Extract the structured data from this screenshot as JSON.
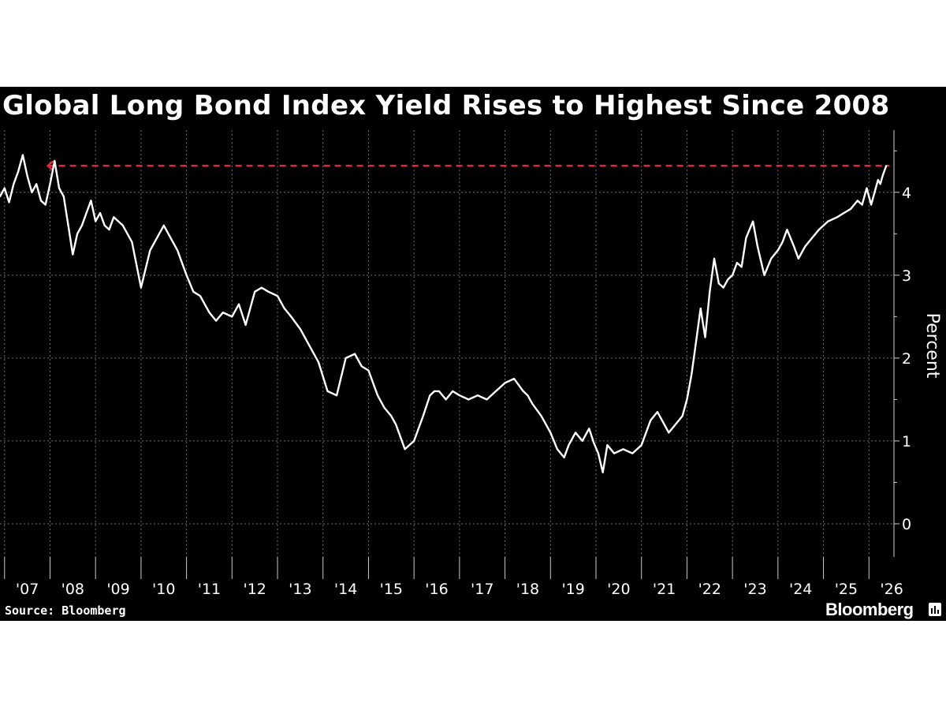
{
  "header": {
    "title": "Global Long Bond Index Yield Rises to Highest Since 2008"
  },
  "footer": {
    "source": "Source: Bloomberg",
    "brand": "Bloomberg",
    "brand_icon": "bar-chart-icon"
  },
  "colors": {
    "background": "#000000",
    "line": "#ffffff",
    "reference": "#e0283c",
    "grid": "#6e6e6e"
  },
  "chart_data": {
    "type": "line",
    "title": "Global Long Bond Index Yield Rises to Highest Since 2008",
    "ylabel": "Percent",
    "xlabel": "",
    "x_unit": "year",
    "ylim": [
      -0.4,
      4.75
    ],
    "yticks": [
      0,
      1,
      2,
      3,
      4
    ],
    "ytick_labels": [
      "0",
      "1",
      "2",
      "3",
      "4"
    ],
    "xlim": [
      2006.9,
      2026.55
    ],
    "xticks": [
      2007,
      2008,
      2009,
      2010,
      2011,
      2012,
      2013,
      2014,
      2015,
      2016,
      2017,
      2018,
      2019,
      2020,
      2021,
      2022,
      2023,
      2024,
      2025,
      2026
    ],
    "xtick_labels": [
      "'07",
      "'08",
      "'09",
      "'10",
      "'11",
      "'12",
      "'13",
      "'14",
      "'15",
      "'16",
      "'17",
      "'18",
      "'19",
      "'20",
      "'21",
      "'22",
      "'23",
      "'24",
      "'25",
      "'26"
    ],
    "grid": true,
    "reference_line": {
      "y": 4.32,
      "x_start": 2007.95,
      "x_end": 2026.45,
      "style": "dashed"
    },
    "series": [
      {
        "x": [
          2006.9,
          2007.0,
          2007.1,
          2007.2,
          2007.3,
          2007.4,
          2007.5,
          2007.6,
          2007.7,
          2007.8,
          2007.9,
          2008.0,
          2008.1,
          2008.2,
          2008.3,
          2008.4,
          2008.5,
          2008.6,
          2008.7,
          2008.8,
          2008.9,
          2009.0,
          2009.1,
          2009.2,
          2009.3,
          2009.4,
          2009.6,
          2009.8,
          2010.0,
          2010.2,
          2010.4,
          2010.5,
          2010.65,
          2010.8,
          2011.0,
          2011.15,
          2011.3,
          2011.5,
          2011.65,
          2011.8,
          2012.0,
          2012.15,
          2012.3,
          2012.5,
          2012.65,
          2012.8,
          2013.0,
          2013.15,
          2013.3,
          2013.5,
          2013.7,
          2013.9,
          2014.1,
          2014.3,
          2014.5,
          2014.7,
          2014.85,
          2015.0,
          2015.1,
          2015.2,
          2015.35,
          2015.5,
          2015.6,
          2015.8,
          2016.0,
          2016.2,
          2016.35,
          2016.45,
          2016.55,
          2016.7,
          2016.85,
          2017.0,
          2017.2,
          2017.4,
          2017.6,
          2017.8,
          2018.0,
          2018.2,
          2018.4,
          2018.5,
          2018.6,
          2018.8,
          2019.0,
          2019.15,
          2019.3,
          2019.4,
          2019.55,
          2019.7,
          2019.85,
          2019.95,
          2020.05,
          2020.15,
          2020.25,
          2020.4,
          2020.6,
          2020.8,
          2021.0,
          2021.1,
          2021.2,
          2021.35,
          2021.5,
          2021.6,
          2021.75,
          2021.9,
          2022.0,
          2022.1,
          2022.2,
          2022.3,
          2022.4,
          2022.5,
          2022.6,
          2022.7,
          2022.8,
          2022.9,
          2023.0,
          2023.1,
          2023.2,
          2023.3,
          2023.45,
          2023.55,
          2023.7,
          2023.85,
          2024.0,
          2024.1,
          2024.2,
          2024.35,
          2024.45,
          2024.6,
          2024.75,
          2024.9,
          2025.1,
          2025.3,
          2025.45,
          2025.6,
          2025.75,
          2025.85,
          2025.95,
          2026.05,
          2026.15,
          2026.2,
          2026.25,
          2026.3,
          2026.38
        ],
        "values": [
          3.95,
          4.05,
          3.88,
          4.1,
          4.25,
          4.45,
          4.2,
          4.0,
          4.1,
          3.9,
          3.85,
          4.1,
          4.38,
          4.05,
          3.95,
          3.6,
          3.25,
          3.5,
          3.6,
          3.75,
          3.9,
          3.65,
          3.75,
          3.6,
          3.55,
          3.7,
          3.6,
          3.4,
          2.85,
          3.3,
          3.5,
          3.6,
          3.45,
          3.3,
          3.0,
          2.8,
          2.75,
          2.55,
          2.45,
          2.55,
          2.5,
          2.65,
          2.4,
          2.8,
          2.85,
          2.8,
          2.75,
          2.6,
          2.5,
          2.35,
          2.15,
          1.95,
          1.6,
          1.55,
          2.0,
          2.05,
          1.9,
          1.85,
          1.7,
          1.55,
          1.4,
          1.3,
          1.2,
          0.9,
          1.0,
          1.3,
          1.55,
          1.6,
          1.6,
          1.5,
          1.6,
          1.55,
          1.5,
          1.55,
          1.5,
          1.6,
          1.7,
          1.75,
          1.6,
          1.55,
          1.45,
          1.3,
          1.1,
          0.9,
          0.8,
          0.95,
          1.1,
          1.0,
          1.15,
          0.98,
          0.85,
          0.62,
          0.95,
          0.85,
          0.9,
          0.85,
          0.95,
          1.1,
          1.25,
          1.35,
          1.2,
          1.1,
          1.2,
          1.3,
          1.5,
          1.8,
          2.2,
          2.6,
          2.25,
          2.8,
          3.2,
          2.9,
          2.85,
          2.95,
          3.0,
          3.15,
          3.1,
          3.45,
          3.65,
          3.35,
          3.0,
          3.2,
          3.3,
          3.4,
          3.55,
          3.35,
          3.2,
          3.35,
          3.45,
          3.55,
          3.65,
          3.7,
          3.75,
          3.8,
          3.9,
          3.85,
          4.05,
          3.85,
          4.05,
          4.15,
          4.1,
          4.2,
          4.32
        ]
      }
    ]
  }
}
